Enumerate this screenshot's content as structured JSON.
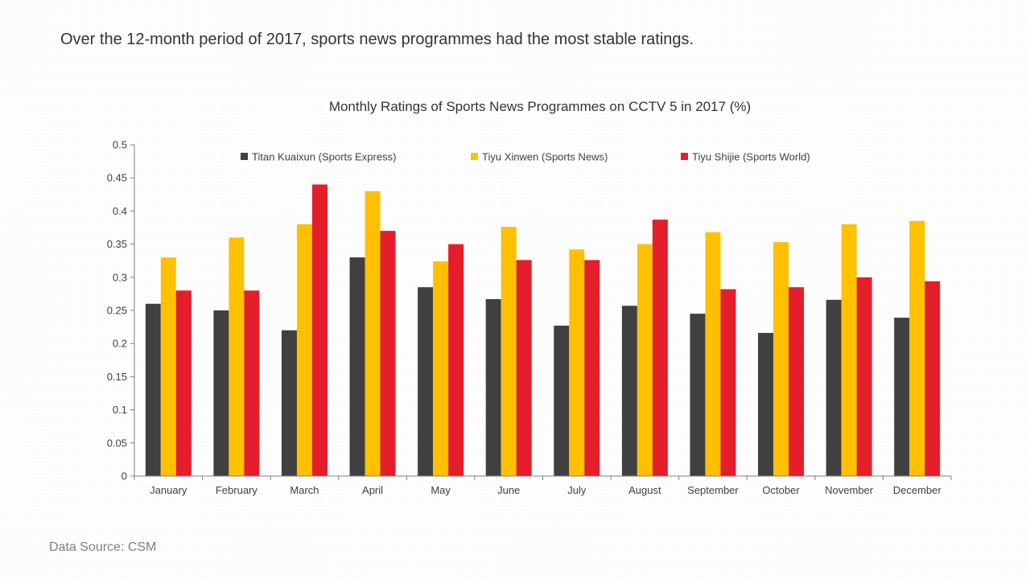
{
  "headline": "Over the 12-month period of 2017, sports news programmes had the most stable ratings.",
  "source": "Data Source: CSM",
  "chart_data": {
    "type": "bar",
    "title": "Monthly Ratings of Sports News Programmes on CCTV 5 in 2017 (%)",
    "xlabel": "",
    "ylabel": "",
    "ylim": [
      0,
      0.5
    ],
    "yticks": [
      "0",
      "0.05",
      "0.1",
      "0.15",
      "0.2",
      "0.25",
      "0.3",
      "0.35",
      "0.4",
      "0.45",
      "0.5"
    ],
    "ytick_values": [
      0,
      0.05,
      0.1,
      0.15,
      0.2,
      0.25,
      0.3,
      0.35,
      0.4,
      0.45,
      0.5
    ],
    "grid": false,
    "legend_position": "top",
    "categories": [
      "January",
      "February",
      "March",
      "April",
      "May",
      "June",
      "July",
      "August",
      "September",
      "October",
      "November",
      "December"
    ],
    "series": [
      {
        "name": "Titan Kuaixun (Sports Express)",
        "color": "#404040",
        "values": [
          0.26,
          0.25,
          0.22,
          0.33,
          0.285,
          0.267,
          0.227,
          0.257,
          0.245,
          0.216,
          0.266,
          0.239
        ]
      },
      {
        "name": "Tiyu Xinwen (Sports News)",
        "color": "#FFC000",
        "values": [
          0.33,
          0.36,
          0.38,
          0.43,
          0.324,
          0.376,
          0.342,
          0.35,
          0.368,
          0.353,
          0.38,
          0.385
        ]
      },
      {
        "name": "Tiyu Shijie (Sports World)",
        "color": "#E41E2B",
        "values": [
          0.28,
          0.28,
          0.44,
          0.37,
          0.35,
          0.326,
          0.326,
          0.387,
          0.282,
          0.285,
          0.3,
          0.294
        ]
      }
    ]
  }
}
